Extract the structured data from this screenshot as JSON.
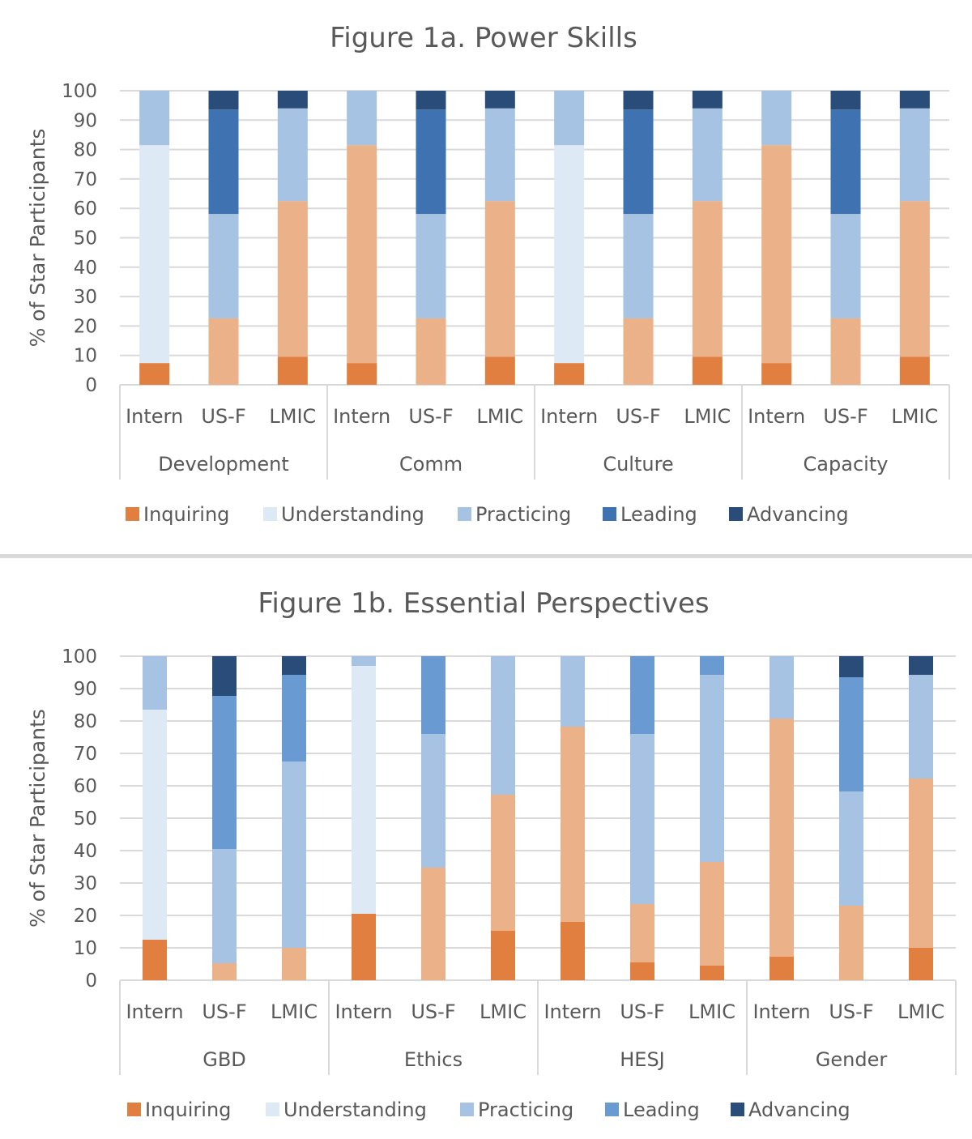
{
  "palette": {
    "inq": "#E07F3F",
    "und": "#DEE9F6",
    "sal": "#EBB189",
    "pra": "#A6C3E3",
    "lea": "#3E72B0",
    "lea2": "#699BD2",
    "adv": "#294D78",
    "grid": "#D9D9D9",
    "divider": "#D9D9D9"
  },
  "chart_data": [
    {
      "type": "bar",
      "stacked": true,
      "title": "Figure 1a. Power Skills",
      "ylabel": "% of Star Participants",
      "xlabel": "",
      "ylim": [
        0,
        100
      ],
      "yticks": [
        "0",
        "10",
        "20",
        "30",
        "40",
        "50",
        "60",
        "70",
        "80",
        "90",
        "100"
      ],
      "grid": true,
      "legend_position": "bottom",
      "legend": [
        {
          "name": "Inquiring",
          "color": "inq"
        },
        {
          "name": "Understanding",
          "color": "und"
        },
        {
          "name": "Practicing",
          "color": "pra"
        },
        {
          "name": "Leading",
          "color": "lea"
        },
        {
          "name": "Advancing",
          "color": "adv"
        }
      ],
      "groups": [
        {
          "name": "Development",
          "bars": [
            {
              "label": "Intern",
              "segments": [
                [
                  "Inquiring",
                  7.4,
                  "inq"
                ],
                [
                  "Understanding",
                  74.1,
                  "und"
                ],
                [
                  "Practicing",
                  18.5,
                  "pra"
                ]
              ]
            },
            {
              "label": "US-F",
              "segments": [
                [
                  "Understanding",
                  22.6,
                  "sal"
                ],
                [
                  "Practicing",
                  35.5,
                  "pra"
                ],
                [
                  "Leading",
                  35.5,
                  "lea"
                ],
                [
                  "Advancing",
                  6.4,
                  "adv"
                ]
              ]
            },
            {
              "label": "LMIC",
              "segments": [
                [
                  "Inquiring",
                  9.5,
                  "inq"
                ],
                [
                  "Understanding",
                  53,
                  "sal"
                ],
                [
                  "Practicing",
                  31.5,
                  "pra"
                ],
                [
                  "Advancing",
                  6,
                  "adv"
                ]
              ]
            }
          ]
        },
        {
          "name": "Comm",
          "bars": [
            {
              "label": "Intern",
              "segments": [
                [
                  "Inquiring",
                  7.4,
                  "inq"
                ],
                [
                  "Understanding",
                  74.1,
                  "sal"
                ],
                [
                  "Practicing",
                  18.5,
                  "pra"
                ]
              ]
            },
            {
              "label": "US-F",
              "segments": [
                [
                  "Understanding",
                  22.6,
                  "sal"
                ],
                [
                  "Practicing",
                  35.5,
                  "pra"
                ],
                [
                  "Leading",
                  35.5,
                  "lea"
                ],
                [
                  "Advancing",
                  6.4,
                  "adv"
                ]
              ]
            },
            {
              "label": "LMIC",
              "segments": [
                [
                  "Inquiring",
                  9.5,
                  "inq"
                ],
                [
                  "Understanding",
                  53,
                  "sal"
                ],
                [
                  "Practicing",
                  31.5,
                  "pra"
                ],
                [
                  "Advancing",
                  6,
                  "adv"
                ]
              ]
            }
          ]
        },
        {
          "name": "Culture",
          "bars": [
            {
              "label": "Intern",
              "segments": [
                [
                  "Inquiring",
                  7.4,
                  "inq"
                ],
                [
                  "Understanding",
                  74.1,
                  "und"
                ],
                [
                  "Practicing",
                  18.5,
                  "pra"
                ]
              ]
            },
            {
              "label": "US-F",
              "segments": [
                [
                  "Understanding",
                  22.6,
                  "sal"
                ],
                [
                  "Practicing",
                  35.5,
                  "pra"
                ],
                [
                  "Leading",
                  35.5,
                  "lea"
                ],
                [
                  "Advancing",
                  6.4,
                  "adv"
                ]
              ]
            },
            {
              "label": "LMIC",
              "segments": [
                [
                  "Inquiring",
                  9.5,
                  "inq"
                ],
                [
                  "Understanding",
                  53,
                  "sal"
                ],
                [
                  "Practicing",
                  31.5,
                  "pra"
                ],
                [
                  "Advancing",
                  6,
                  "adv"
                ]
              ]
            }
          ]
        },
        {
          "name": "Capacity",
          "bars": [
            {
              "label": "Intern",
              "segments": [
                [
                  "Inquiring",
                  7.4,
                  "inq"
                ],
                [
                  "Understanding",
                  74.1,
                  "sal"
                ],
                [
                  "Practicing",
                  18.5,
                  "pra"
                ]
              ]
            },
            {
              "label": "US-F",
              "segments": [
                [
                  "Understanding",
                  22.6,
                  "sal"
                ],
                [
                  "Practicing",
                  35.5,
                  "pra"
                ],
                [
                  "Leading",
                  35.5,
                  "lea"
                ],
                [
                  "Advancing",
                  6.4,
                  "adv"
                ]
              ]
            },
            {
              "label": "LMIC",
              "segments": [
                [
                  "Inquiring",
                  9.5,
                  "inq"
                ],
                [
                  "Understanding",
                  53,
                  "sal"
                ],
                [
                  "Practicing",
                  31.5,
                  "pra"
                ],
                [
                  "Advancing",
                  6,
                  "adv"
                ]
              ]
            }
          ]
        }
      ]
    },
    {
      "type": "bar",
      "stacked": true,
      "title": "Figure 1b. Essential Perspectives",
      "ylabel": "% of Star Participants",
      "xlabel": "",
      "ylim": [
        0,
        100
      ],
      "yticks": [
        "0",
        "10",
        "20",
        "30",
        "40",
        "50",
        "60",
        "70",
        "80",
        "90",
        "100"
      ],
      "grid": true,
      "legend_position": "bottom",
      "legend": [
        {
          "name": "Inquiring",
          "color": "inq"
        },
        {
          "name": "Understanding",
          "color": "und"
        },
        {
          "name": "Practicing",
          "color": "pra"
        },
        {
          "name": "Leading",
          "color": "lea2"
        },
        {
          "name": "Advancing",
          "color": "adv"
        }
      ],
      "groups": [
        {
          "name": "GBD",
          "bars": [
            {
              "label": "Intern",
              "segments": [
                [
                  "Inquiring",
                  12.5,
                  "inq"
                ],
                [
                  "Understanding",
                  71,
                  "und"
                ],
                [
                  "Practicing",
                  16.5,
                  "pra"
                ]
              ]
            },
            {
              "label": "US-F",
              "segments": [
                [
                  "Understanding",
                  5.25,
                  "sal"
                ],
                [
                  "Practicing",
                  35.25,
                  "pra"
                ],
                [
                  "Leading",
                  47.25,
                  "lea2"
                ],
                [
                  "Advancing",
                  12.25,
                  "adv"
                ]
              ]
            },
            {
              "label": "LMIC",
              "segments": [
                [
                  "Understanding",
                  10,
                  "sal"
                ],
                [
                  "Practicing",
                  57.5,
                  "pra"
                ],
                [
                  "Leading",
                  26.75,
                  "lea2"
                ],
                [
                  "Advancing",
                  5.75,
                  "adv"
                ]
              ]
            }
          ]
        },
        {
          "name": "Ethics",
          "bars": [
            {
              "label": "Intern",
              "segments": [
                [
                  "Inquiring",
                  20.5,
                  "inq"
                ],
                [
                  "Understanding",
                  76.5,
                  "und"
                ],
                [
                  "Practicing",
                  3,
                  "pra"
                ]
              ]
            },
            {
              "label": "US-F",
              "segments": [
                [
                  "Understanding",
                  34.75,
                  "sal"
                ],
                [
                  "Practicing",
                  41.25,
                  "pra"
                ],
                [
                  "Leading",
                  24,
                  "lea2"
                ]
              ]
            },
            {
              "label": "LMIC",
              "segments": [
                [
                  "Inquiring",
                  15.25,
                  "inq"
                ],
                [
                  "Understanding",
                  42,
                  "sal"
                ],
                [
                  "Practicing",
                  42.75,
                  "pra"
                ]
              ]
            }
          ]
        },
        {
          "name": "HESJ",
          "bars": [
            {
              "label": "Intern",
              "segments": [
                [
                  "Inquiring",
                  18,
                  "inq"
                ],
                [
                  "Understanding",
                  60.25,
                  "sal"
                ],
                [
                  "Practicing",
                  21.75,
                  "pra"
                ]
              ]
            },
            {
              "label": "US-F",
              "segments": [
                [
                  "Inquiring",
                  5.5,
                  "inq"
                ],
                [
                  "Understanding",
                  18,
                  "sal"
                ],
                [
                  "Practicing",
                  52.5,
                  "pra"
                ],
                [
                  "Leading",
                  24,
                  "lea2"
                ]
              ]
            },
            {
              "label": "LMIC",
              "segments": [
                [
                  "Inquiring",
                  4.5,
                  "inq"
                ],
                [
                  "Understanding",
                  32,
                  "sal"
                ],
                [
                  "Practicing",
                  57.75,
                  "pra"
                ],
                [
                  "Leading",
                  5.75,
                  "lea2"
                ]
              ]
            }
          ]
        },
        {
          "name": "Gender",
          "bars": [
            {
              "label": "Intern",
              "segments": [
                [
                  "Inquiring",
                  7.25,
                  "inq"
                ],
                [
                  "Understanding",
                  73.5,
                  "sal"
                ],
                [
                  "Practicing",
                  19.25,
                  "pra"
                ]
              ]
            },
            {
              "label": "US-F",
              "segments": [
                [
                  "Understanding",
                  23,
                  "sal"
                ],
                [
                  "Practicing",
                  35.25,
                  "pra"
                ],
                [
                  "Leading",
                  35.25,
                  "lea2"
                ],
                [
                  "Advancing",
                  6.5,
                  "adv"
                ]
              ]
            },
            {
              "label": "LMIC",
              "segments": [
                [
                  "Inquiring",
                  10,
                  "inq"
                ],
                [
                  "Understanding",
                  52.25,
                  "sal"
                ],
                [
                  "Practicing",
                  32,
                  "pra"
                ],
                [
                  "Advancing",
                  5.75,
                  "adv"
                ]
              ]
            }
          ]
        }
      ]
    }
  ]
}
